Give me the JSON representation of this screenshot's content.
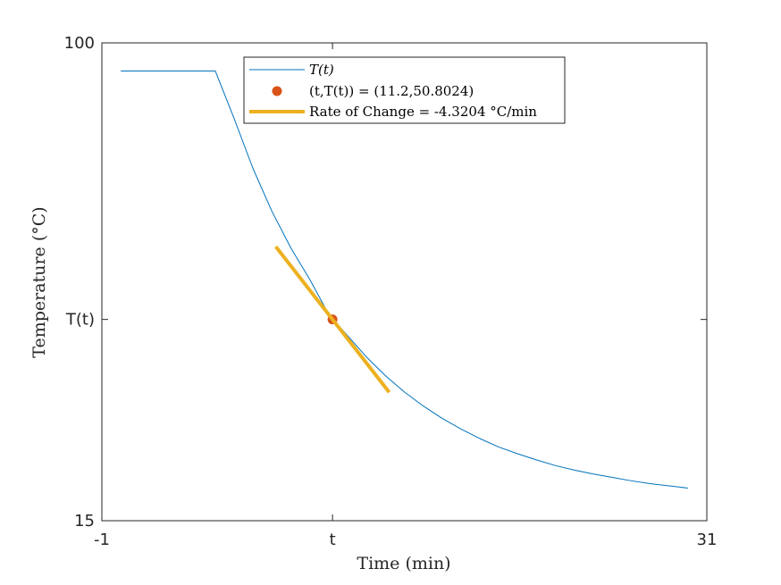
{
  "chart_data": {
    "type": "line",
    "xlabel": "Time (min)",
    "ylabel": "Temperature (°C)",
    "xlim": [
      -1,
      31
    ],
    "ylim": [
      15,
      100
    ],
    "xticks": [
      {
        "value": -1,
        "label": "-1"
      },
      {
        "value": 11.2,
        "label": "t"
      },
      {
        "value": 31,
        "label": "31"
      }
    ],
    "yticks": [
      {
        "value": 15,
        "label": "15"
      },
      {
        "value": 50.8024,
        "label": "T(t)"
      },
      {
        "value": 100,
        "label": "100"
      }
    ],
    "grid": false,
    "legend_position": "top-center",
    "series": [
      {
        "name": "T(t)",
        "kind": "line",
        "color": "#0072BD",
        "x": [
          0,
          1,
          2,
          3,
          4,
          5,
          6,
          7,
          8,
          9,
          10,
          11,
          12,
          13,
          14,
          15,
          16,
          17,
          18,
          19,
          20,
          21,
          22,
          23,
          24,
          25,
          26,
          27,
          28,
          29,
          30
        ],
        "y": [
          95,
          95,
          95,
          95,
          95,
          95,
          86.5,
          77.6,
          70.0,
          63.5,
          57.9,
          51.7,
          47.9,
          44.1,
          40.8,
          37.9,
          35.4,
          33.2,
          31.3,
          29.6,
          28.1,
          26.9,
          25.8,
          24.8,
          24.0,
          23.3,
          22.7,
          22.1,
          21.6,
          21.2,
          20.8
        ]
      },
      {
        "name": "(t,T(t)) = (11.2,50.8024)",
        "kind": "point",
        "color": "#D95319",
        "x": [
          11.2
        ],
        "y": [
          50.8024
        ]
      },
      {
        "name": "Rate of Change = -4.3204 °C/min",
        "kind": "tangent",
        "color": "#EDB120",
        "x": [
          8.2,
          14.2
        ],
        "y": [
          63.76,
          37.84
        ]
      }
    ],
    "legend_entries": [
      {
        "label": "T(t)"
      },
      {
        "label": "(t,T(t)) = (11.2,50.8024)"
      },
      {
        "label": "Rate of Change = -4.3204 °C/min"
      }
    ]
  }
}
